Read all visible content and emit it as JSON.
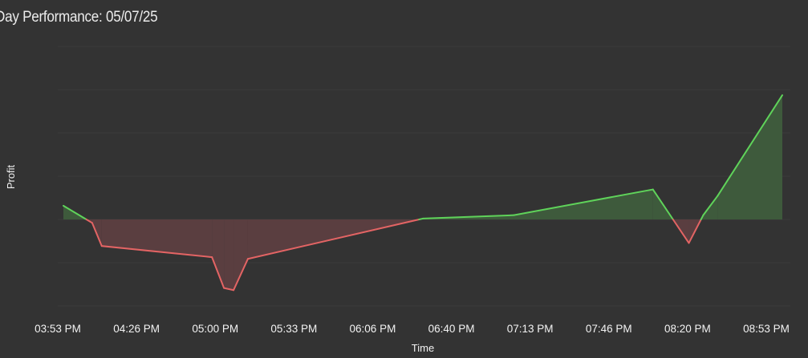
{
  "chart_data": {
    "type": "area",
    "title": "Day Performance: 05/07/25",
    "xlabel": "Time",
    "ylabel": "Profit",
    "x_ticks": [
      "03:53 PM",
      "04:26 PM",
      "05:00 PM",
      "05:33 PM",
      "06:06 PM",
      "06:40 PM",
      "07:13 PM",
      "07:46 PM",
      "08:20 PM",
      "08:53 PM"
    ],
    "grid": "horizontal",
    "baseline": 0,
    "colors": {
      "positive_line": "#5fd35a",
      "negative_line": "#e36464",
      "positive_fill": "#3e5a3c",
      "negative_fill": "#5a3e40",
      "background": "#333333",
      "grid": "#3b3b3b"
    },
    "series": [
      {
        "x": [
          "15:53",
          "16:05",
          "16:09",
          "16:55",
          "17:00",
          "17:04",
          "17:10",
          "18:23",
          "19:01",
          "19:59",
          "20:14",
          "20:20",
          "20:26",
          "20:53"
        ],
        "y": [
          0.32,
          -0.08,
          -0.62,
          -0.88,
          -1.6,
          -1.65,
          -0.92,
          0.02,
          0.1,
          0.7,
          -0.55,
          0.1,
          0.55,
          2.9
        ]
      }
    ]
  }
}
